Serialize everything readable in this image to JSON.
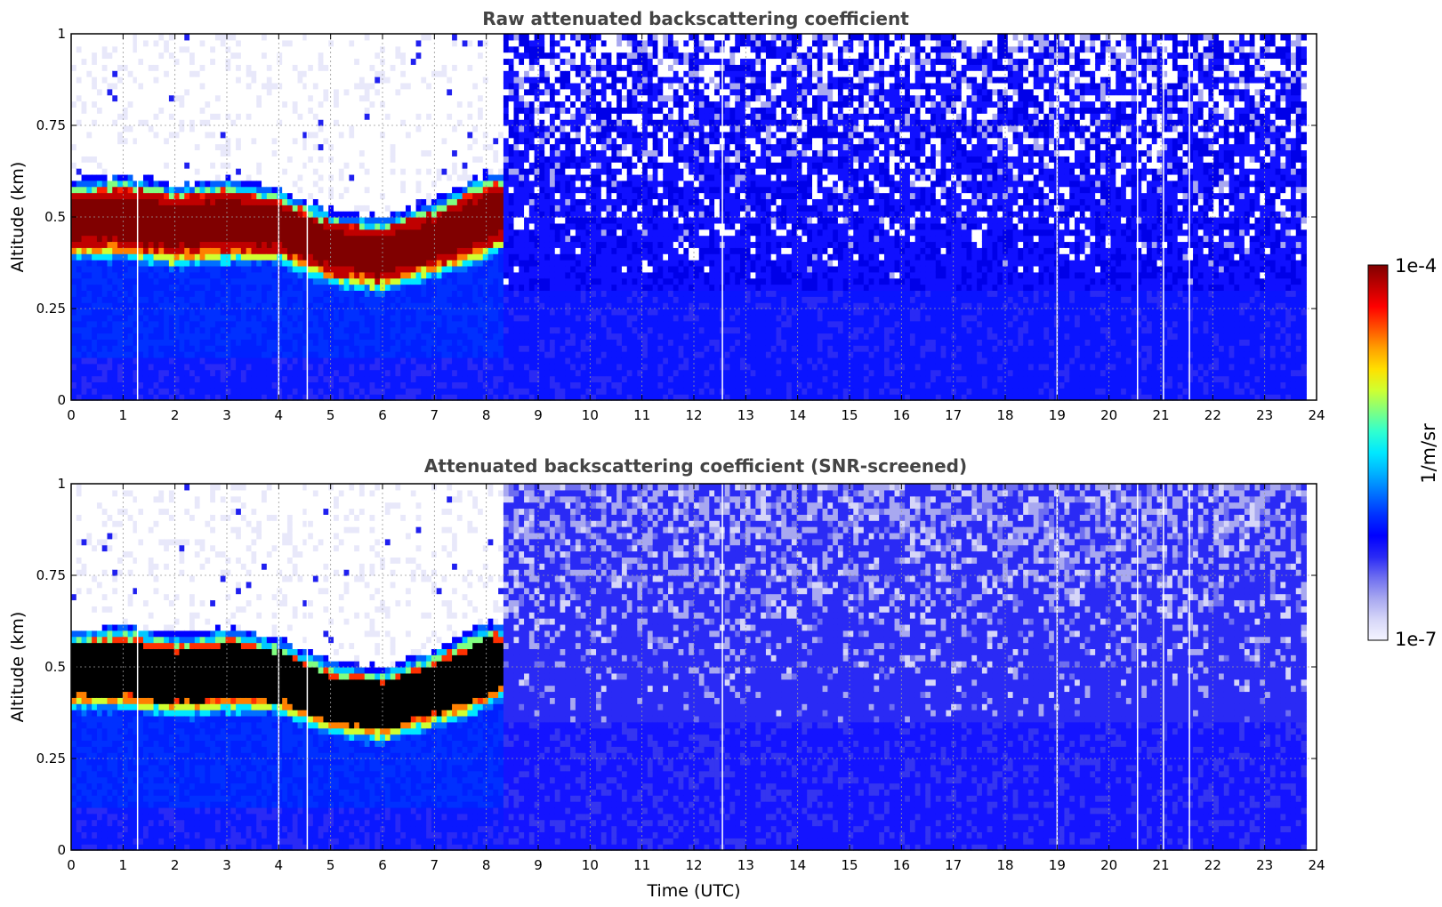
{
  "figure": {
    "xlabel": "Time (UTC)",
    "colorbar": {
      "label": "1/m/sr",
      "max_label": "1e-4",
      "min_label": "1e-7",
      "scale": "log",
      "colormap": "jet with light blue-white at low end",
      "colors": [
        "#f4f4ff",
        "#d6d6f8",
        "#a8a8f0",
        "#6e6ef0",
        "#2a2af5",
        "#0000ff",
        "#0030ff",
        "#0070ff",
        "#00b0ff",
        "#00e8ff",
        "#30ffd0",
        "#80ff80",
        "#d0ff30",
        "#ffe000",
        "#ffa000",
        "#ff5000",
        "#ff0000",
        "#c00000",
        "#800000"
      ]
    }
  },
  "chart_data": [
    {
      "type": "heatmap",
      "title": "Raw attenuated backscattering coefficient",
      "xlabel": "",
      "ylabel": "Altitude (km)",
      "xlim": [
        0,
        24
      ],
      "ylim": [
        0,
        1
      ],
      "xticks": [
        "0",
        "1",
        "2",
        "3",
        "4",
        "5",
        "6",
        "7",
        "8",
        "9",
        "10",
        "11",
        "12",
        "13",
        "14",
        "15",
        "16",
        "17",
        "18",
        "19",
        "20",
        "21",
        "22",
        "23",
        "24"
      ],
      "yticks": [
        "0",
        "0.25",
        "0.5",
        "0.75",
        "1"
      ],
      "grid": true,
      "data_end_hour": 23.8,
      "fog_layer": {
        "end_hour": 8.3,
        "top_km": [
          [
            0,
            0.58
          ],
          [
            1,
            0.6
          ],
          [
            2,
            0.57
          ],
          [
            3,
            0.59
          ],
          [
            4,
            0.56
          ],
          [
            5,
            0.5
          ],
          [
            6,
            0.48
          ],
          [
            7,
            0.53
          ],
          [
            8,
            0.6
          ],
          [
            8.3,
            0.6
          ]
        ],
        "base_km": [
          [
            0,
            0.4
          ],
          [
            1,
            0.4
          ],
          [
            2,
            0.38
          ],
          [
            3,
            0.39
          ],
          [
            4,
            0.39
          ],
          [
            5,
            0.33
          ],
          [
            6,
            0.31
          ],
          [
            7,
            0.35
          ],
          [
            8,
            0.4
          ],
          [
            8.3,
            0.43
          ]
        ]
      },
      "gap_hours": [
        1.28,
        4.0,
        4.55,
        12.55,
        19.0,
        20.55,
        21.05,
        21.55
      ]
    },
    {
      "type": "heatmap",
      "title": "Attenuated backscattering coefficient (SNR-screened)",
      "xlabel": "Time (UTC)",
      "ylabel": "Altitude (km)",
      "xlim": [
        0,
        24
      ],
      "ylim": [
        0,
        1
      ],
      "xticks": [
        "0",
        "1",
        "2",
        "3",
        "4",
        "5",
        "6",
        "7",
        "8",
        "9",
        "10",
        "11",
        "12",
        "13",
        "14",
        "15",
        "16",
        "17",
        "18",
        "19",
        "20",
        "21",
        "22",
        "23",
        "24"
      ],
      "yticks": [
        "0",
        "0.25",
        "0.5",
        "0.75",
        "1"
      ],
      "grid": true,
      "data_end_hour": 23.8,
      "fog_layer": {
        "end_hour": 8.3,
        "top_km": [
          [
            0,
            0.58
          ],
          [
            1,
            0.6
          ],
          [
            2,
            0.57
          ],
          [
            3,
            0.59
          ],
          [
            4,
            0.56
          ],
          [
            5,
            0.5
          ],
          [
            6,
            0.48
          ],
          [
            7,
            0.53
          ],
          [
            8,
            0.6
          ],
          [
            8.3,
            0.6
          ]
        ],
        "base_km": [
          [
            0,
            0.4
          ],
          [
            1,
            0.4
          ],
          [
            2,
            0.38
          ],
          [
            3,
            0.39
          ],
          [
            4,
            0.39
          ],
          [
            5,
            0.33
          ],
          [
            6,
            0.31
          ],
          [
            7,
            0.35
          ],
          [
            8,
            0.4
          ],
          [
            8.3,
            0.43
          ]
        ]
      },
      "gap_hours": [
        1.28,
        4.0,
        4.55,
        12.55,
        19.0,
        20.55,
        21.05,
        21.55
      ]
    }
  ]
}
